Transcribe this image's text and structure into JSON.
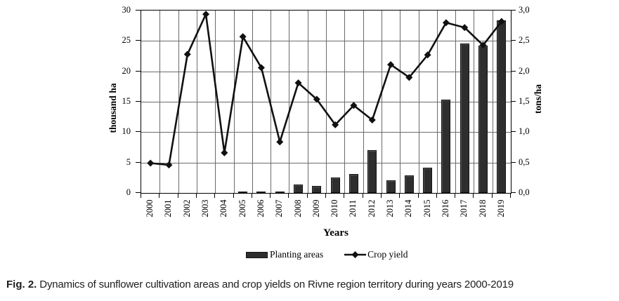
{
  "caption": {
    "label": "Fig. 2.",
    "text": " Dynamics of sunflower cultivation areas and crop yields on Rivne region territory during years 2000-2019"
  },
  "chart_data": {
    "type": "bar",
    "subtype": "combo-bar-line-dual-axis",
    "title": "",
    "xlabel": "Years",
    "categories": [
      "2000",
      "2001",
      "2002",
      "2003",
      "2004",
      "2005",
      "2006",
      "2007",
      "2008",
      "2009",
      "2010",
      "2011",
      "2012",
      "2013",
      "2014",
      "2015",
      "2016",
      "2017",
      "2018",
      "2019"
    ],
    "series": [
      {
        "name": "Planting areas",
        "type": "bar",
        "axis": "left",
        "color": "#2e2e2e",
        "values": [
          0,
          0,
          0,
          0,
          0,
          0.1,
          0.2,
          0.2,
          1.4,
          1.1,
          2.5,
          3.1,
          7.0,
          2.1,
          2.9,
          4.2,
          15.3,
          24.6,
          24.2,
          28.4
        ]
      },
      {
        "name": "Crop yield",
        "type": "line",
        "axis": "right",
        "color": "#111111",
        "marker": "diamond",
        "values": [
          0.49,
          0.46,
          2.28,
          2.94,
          0.66,
          2.57,
          2.06,
          0.84,
          1.81,
          1.54,
          1.12,
          1.44,
          1.2,
          2.11,
          1.9,
          2.27,
          2.8,
          2.72,
          2.43,
          2.82
        ]
      }
    ],
    "left_axis": {
      "label": "thousand ha",
      "min": 0,
      "max": 30,
      "step": 5,
      "ticks": [
        "0",
        "5",
        "10",
        "15",
        "20",
        "25",
        "30"
      ]
    },
    "right_axis": {
      "label": "tons/ha",
      "min": 0,
      "max": 3,
      "step": 0.5,
      "ticks": [
        "0,0",
        "0,5",
        "1,0",
        "1,5",
        "2,0",
        "2,5",
        "3,0"
      ]
    },
    "grid": {
      "horizontal": true,
      "vertical": true,
      "color": "#6b6b6b"
    },
    "legend_position": "bottom"
  }
}
